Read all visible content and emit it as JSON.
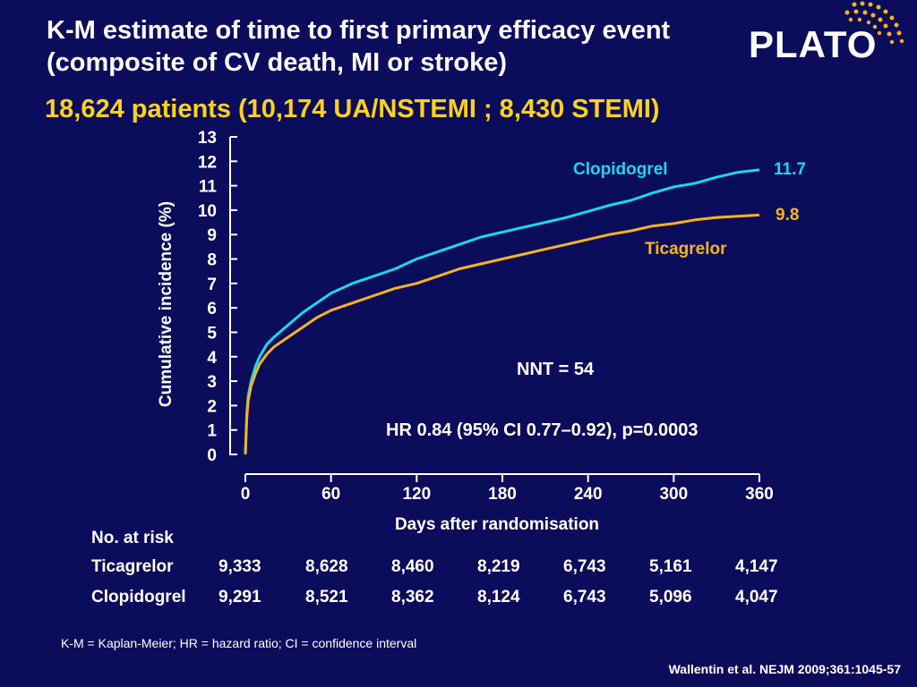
{
  "slide": {
    "title": "K-M estimate of time to first primary efficacy event (composite of CV death, MI or stroke)",
    "subtitle": "18,624 patients (10,174 UA/NSTEMI ; 8,430 STEMI)",
    "logo_text": "PLATO",
    "footnote": "K-M = Kaplan-Meier; HR = hazard ratio; CI = confidence interval",
    "citation": "Wallentin et al. NEJM 2009;361:1045-57"
  },
  "colors": {
    "background": "#0c0c5c",
    "clopidogrel": "#17d8f0",
    "ticagrelor": "#f5b41e",
    "subtitle": "#ffd21a",
    "axis": "#ffffff"
  },
  "chart_data": {
    "type": "line",
    "xlabel": "Days after randomisation",
    "ylabel": "Cumulative incidence (%)",
    "xlim": [
      0,
      360
    ],
    "ylim": [
      0,
      13
    ],
    "x_ticks": [
      0,
      60,
      120,
      180,
      240,
      300,
      360
    ],
    "y_ticks": [
      0,
      1,
      2,
      3,
      4,
      5,
      6,
      7,
      8,
      9,
      10,
      11,
      12,
      13
    ],
    "grid": false,
    "series": [
      {
        "name": "Clopidogrel",
        "color": "#17d8f0",
        "end_label": "11.7",
        "x": [
          0,
          1,
          2,
          4,
          7,
          10,
          15,
          20,
          30,
          40,
          50,
          60,
          75,
          90,
          105,
          120,
          135,
          150,
          165,
          180,
          195,
          210,
          225,
          240,
          255,
          270,
          285,
          300,
          315,
          330,
          345,
          360
        ],
        "y": [
          0,
          1.7,
          2.4,
          3.0,
          3.6,
          4.0,
          4.5,
          4.8,
          5.3,
          5.8,
          6.2,
          6.6,
          7.0,
          7.3,
          7.6,
          8.0,
          8.3,
          8.6,
          8.9,
          9.1,
          9.3,
          9.5,
          9.7,
          9.95,
          10.2,
          10.4,
          10.7,
          10.95,
          11.1,
          11.35,
          11.55,
          11.65
        ]
      },
      {
        "name": "Ticagrelor",
        "color": "#f5b41e",
        "end_label": "9.8",
        "x": [
          0,
          1,
          2,
          4,
          7,
          10,
          15,
          20,
          30,
          40,
          50,
          60,
          75,
          90,
          105,
          120,
          135,
          150,
          165,
          180,
          195,
          210,
          225,
          240,
          255,
          270,
          285,
          300,
          315,
          330,
          345,
          360
        ],
        "y": [
          0,
          1.5,
          2.2,
          2.8,
          3.3,
          3.7,
          4.1,
          4.4,
          4.8,
          5.2,
          5.6,
          5.9,
          6.2,
          6.5,
          6.8,
          7.0,
          7.3,
          7.6,
          7.8,
          8.0,
          8.2,
          8.4,
          8.6,
          8.8,
          9.0,
          9.15,
          9.35,
          9.45,
          9.6,
          9.7,
          9.75,
          9.8
        ]
      }
    ],
    "annotations": {
      "nnt": "NNT = 54",
      "hr": "HR 0.84 (95% CI 0.77–0.92), p=0.0003"
    },
    "at_risk": {
      "heading": "No. at risk",
      "rows": [
        {
          "label": "Ticagrelor",
          "values": [
            "9,333",
            "8,628",
            "8,460",
            "8,219",
            "6,743",
            "5,161",
            "4,147"
          ]
        },
        {
          "label": "Clopidogrel",
          "values": [
            "9,291",
            "8,521",
            "8,362",
            "8,124",
            "6,743",
            "5,096",
            "4,047"
          ]
        }
      ]
    }
  }
}
